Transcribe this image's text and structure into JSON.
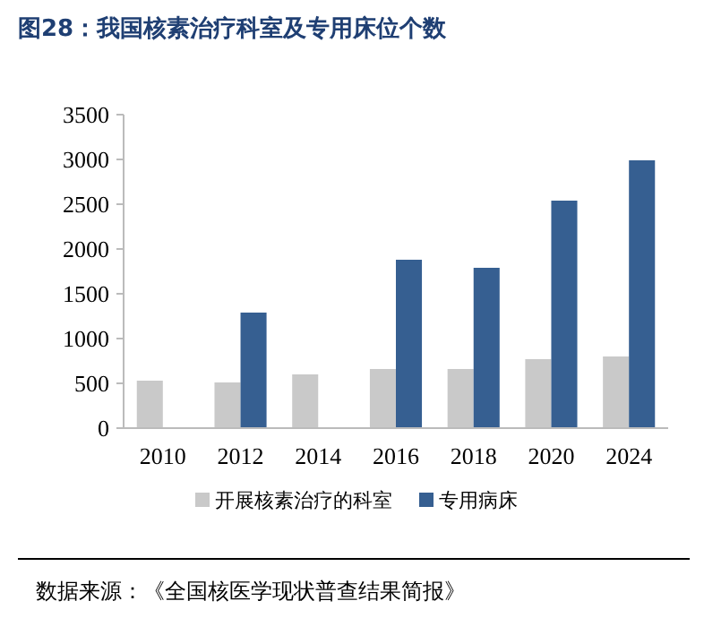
{
  "chart_data": {
    "type": "bar",
    "title": "图28：我国核素治疗科室及专用床位个数",
    "categories": [
      "2010",
      "2012",
      "2014",
      "2016",
      "2018",
      "2020",
      "2024"
    ],
    "series": [
      {
        "name": "开展核素治疗的科室",
        "color": "#c9c9c9",
        "values": [
          530,
          510,
          600,
          660,
          660,
          770,
          800
        ]
      },
      {
        "name": "专用病床",
        "color": "#365f91",
        "values": [
          null,
          1290,
          null,
          1880,
          1790,
          2540,
          2990
        ]
      }
    ],
    "ylim": [
      0,
      3500
    ],
    "yticks": [
      0,
      500,
      1000,
      1500,
      2000,
      2500,
      3000,
      3500
    ],
    "grid": false,
    "legend": "bottom",
    "annotations": [
      "数据来源：《全国核医学现状普查结果简报》"
    ]
  }
}
